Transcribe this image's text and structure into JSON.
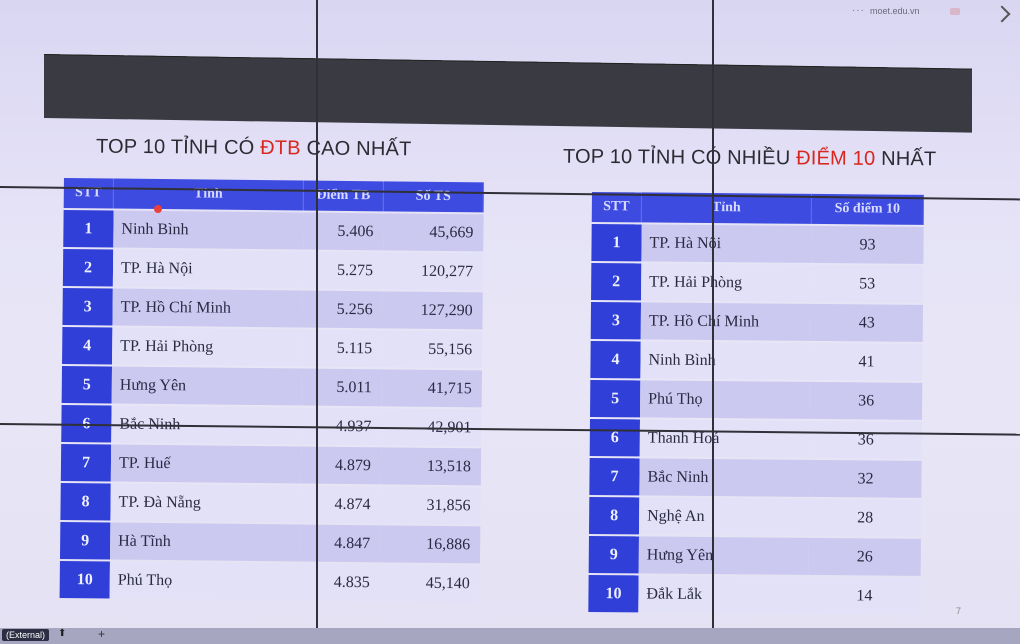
{
  "browser": {
    "domain_text": "moet.edu.vn",
    "badge_text": "BG",
    "external_label": "(External)"
  },
  "slide": {
    "left_title_prefix": "TOP 10 TỈNH CÓ ",
    "left_title_highlight": "ĐTB",
    "left_title_suffix": " CAO NHẤT",
    "right_title_prefix": "TOP 10 TỈNH CÓ NHIỀU ",
    "right_title_highlight": "ĐIỂM 10",
    "right_title_suffix": " NHẤT",
    "highlight_color": "#d9271e",
    "header_color": "#3d4be0",
    "page_mark": "7"
  },
  "left_table": {
    "headers": [
      "STT",
      "Tỉnh",
      "Điểm TB",
      "Số TS"
    ],
    "rows": [
      {
        "stt": "1",
        "name": "Ninh Bình",
        "avg": "5.406",
        "count": "45,669"
      },
      {
        "stt": "2",
        "name": "TP. Hà Nội",
        "avg": "5.275",
        "count": "120,277"
      },
      {
        "stt": "3",
        "name": "TP. Hồ Chí Minh",
        "avg": "5.256",
        "count": "127,290"
      },
      {
        "stt": "4",
        "name": "TP. Hải Phòng",
        "avg": "5.115",
        "count": "55,156"
      },
      {
        "stt": "5",
        "name": "Hưng Yên",
        "avg": "5.011",
        "count": "41,715"
      },
      {
        "stt": "6",
        "name": "Bắc Ninh",
        "avg": "4.937",
        "count": "42,901"
      },
      {
        "stt": "7",
        "name": "TP. Huế",
        "avg": "4.879",
        "count": "13,518"
      },
      {
        "stt": "8",
        "name": "TP. Đà Nẵng",
        "avg": "4.874",
        "count": "31,856"
      },
      {
        "stt": "9",
        "name": "Hà Tĩnh",
        "avg": "4.847",
        "count": "16,886"
      },
      {
        "stt": "10",
        "name": "Phú Thọ",
        "avg": "4.835",
        "count": "45,140"
      }
    ]
  },
  "right_table": {
    "headers": [
      "STT",
      "Tỉnh",
      "Số điểm 10"
    ],
    "rows": [
      {
        "stt": "1",
        "name": "TP. Hà Nội",
        "score10": "93"
      },
      {
        "stt": "2",
        "name": "TP. Hải Phòng",
        "score10": "53"
      },
      {
        "stt": "3",
        "name": "TP. Hồ Chí Minh",
        "score10": "43"
      },
      {
        "stt": "4",
        "name": "Ninh Bình",
        "score10": "41"
      },
      {
        "stt": "5",
        "name": "Phú Thọ",
        "score10": "36"
      },
      {
        "stt": "6",
        "name": "Thanh Hoá",
        "score10": "36"
      },
      {
        "stt": "7",
        "name": "Bắc Ninh",
        "score10": "32"
      },
      {
        "stt": "8",
        "name": "Nghệ An",
        "score10": "28"
      },
      {
        "stt": "9",
        "name": "Hưng Yên",
        "score10": "26"
      },
      {
        "stt": "10",
        "name": "Đắk Lắk",
        "score10": "14"
      }
    ]
  }
}
